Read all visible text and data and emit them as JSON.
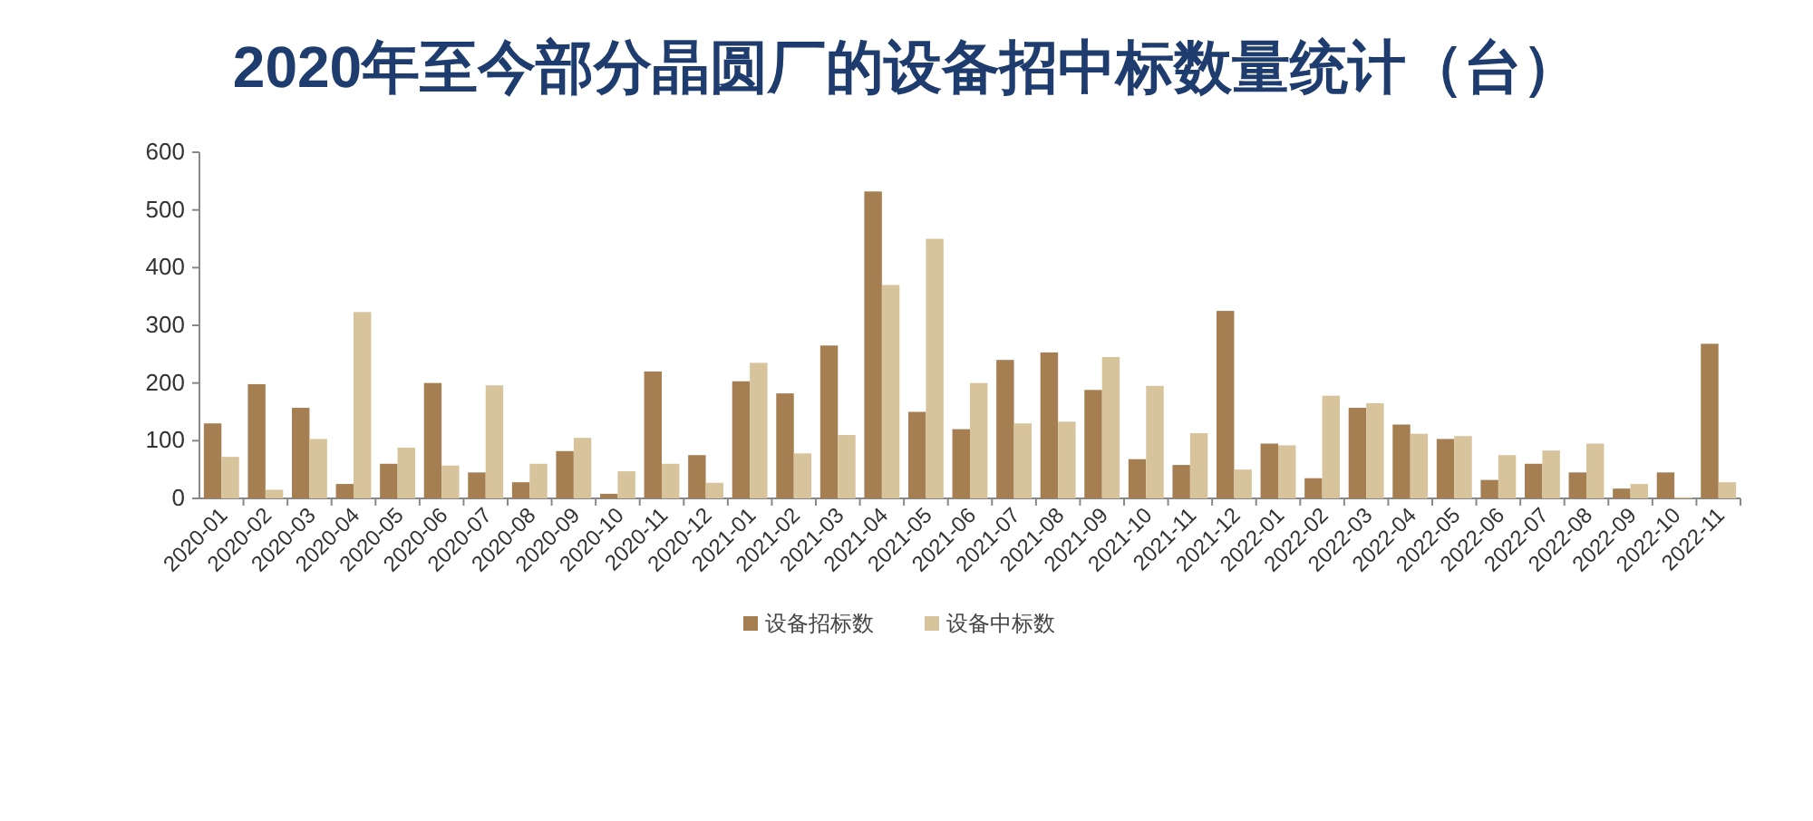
{
  "chart_data": {
    "type": "bar",
    "title": "2020年至今部分晶圆厂的设备招中标数量统计（台）",
    "categories": [
      "2020-01",
      "2020-02",
      "2020-03",
      "2020-04",
      "2020-05",
      "2020-06",
      "2020-07",
      "2020-08",
      "2020-09",
      "2020-10",
      "2020-11",
      "2020-12",
      "2021-01",
      "2021-02",
      "2021-03",
      "2021-04",
      "2021-05",
      "2021-06",
      "2021-07",
      "2021-08",
      "2021-09",
      "2021-10",
      "2021-11",
      "2021-12",
      "2022-01",
      "2022-02",
      "2022-03",
      "2022-04",
      "2022-05",
      "2022-06",
      "2022-07",
      "2022-08",
      "2022-09",
      "2022-10",
      "2022-11"
    ],
    "series": [
      {
        "name": "设备招标数",
        "color": "#a57e52",
        "values": [
          130,
          198,
          157,
          25,
          60,
          200,
          45,
          28,
          82,
          8,
          220,
          75,
          203,
          182,
          265,
          532,
          150,
          120,
          240,
          253,
          188,
          68,
          58,
          325,
          95,
          35,
          157,
          128,
          103,
          32,
          60,
          45,
          17,
          45,
          268
        ]
      },
      {
        "name": "设备中标数",
        "color": "#d8c49c",
        "values": [
          72,
          15,
          103,
          323,
          88,
          57,
          196,
          60,
          105,
          47,
          60,
          27,
          235,
          78,
          110,
          370,
          450,
          200,
          130,
          133,
          245,
          195,
          113,
          50,
          92,
          178,
          165,
          112,
          108,
          75,
          83,
          95,
          25,
          2,
          28
        ]
      }
    ],
    "ylim": [
      0,
      600
    ],
    "yticks": [
      0,
      100,
      200,
      300,
      400,
      500,
      600
    ],
    "grid": false,
    "legend": "bottom"
  }
}
